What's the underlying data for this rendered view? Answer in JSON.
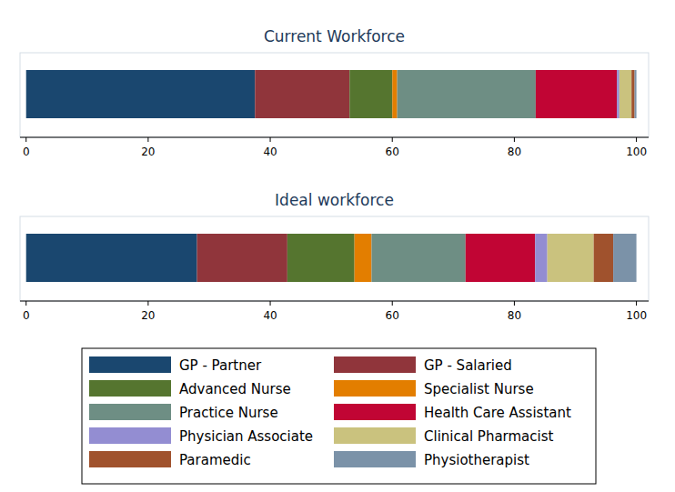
{
  "chart_data": {
    "type": "bar",
    "orientation": "horizontal",
    "stacked": true,
    "legend": "bottom",
    "grid": false,
    "categories": [
      "Current Workforce",
      "Ideal workforce"
    ],
    "xlim": [
      -1,
      102
    ],
    "xticks": [
      0,
      20,
      40,
      60,
      80,
      100
    ],
    "series": [
      {
        "name": "GP - Partner",
        "color": "#1a476f",
        "values": [
          37.5,
          28
        ]
      },
      {
        "name": "GP - Salaried",
        "color": "#90353b",
        "values": [
          15.5,
          14.8
        ]
      },
      {
        "name": "Advanced Nurse",
        "color": "#55752f",
        "values": [
          7,
          11
        ]
      },
      {
        "name": "Specialist Nurse",
        "color": "#e37e00",
        "values": [
          0.8,
          2.8
        ]
      },
      {
        "name": "Practice Nurse",
        "color": "#6e8e84",
        "values": [
          22.7,
          15.4
        ]
      },
      {
        "name": "Health Care Assistant",
        "color": "#c10534",
        "values": [
          13.3,
          11.4
        ]
      },
      {
        "name": "Physician Associate",
        "color": "#938dd2",
        "values": [
          0.4,
          2
        ]
      },
      {
        "name": "Clinical Pharmacist",
        "color": "#cac27e",
        "values": [
          2,
          7.6
        ]
      },
      {
        "name": "Paramedic",
        "color": "#a0522d",
        "values": [
          0.5,
          3.2
        ]
      },
      {
        "name": "Physiotherapist",
        "color": "#7b92a8",
        "values": [
          0.3,
          3.8
        ]
      }
    ]
  }
}
